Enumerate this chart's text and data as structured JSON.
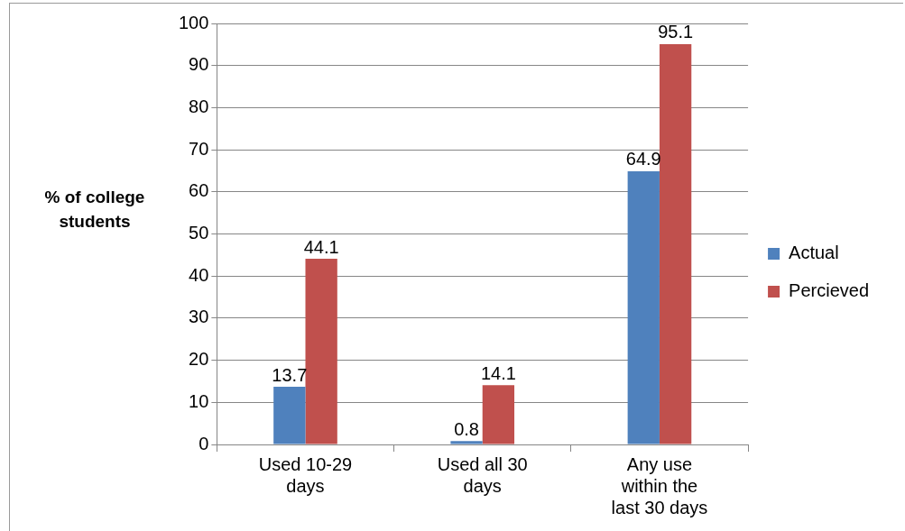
{
  "chart_data": {
    "type": "bar",
    "ylabel": "% of college students",
    "categories": [
      "Used 10-29 days",
      "Used all 30 days",
      "Any use within the last 30 days"
    ],
    "series": [
      {
        "name": "Actual",
        "color": "#4f81bd",
        "values": [
          13.7,
          0.8,
          64.9
        ]
      },
      {
        "name": "Percieved",
        "color": "#c0504d",
        "values": [
          44.1,
          14.1,
          95.1
        ]
      }
    ],
    "ylim": [
      0,
      100
    ],
    "yticks": [
      0,
      10,
      20,
      30,
      40,
      50,
      60,
      70,
      80,
      90,
      100
    ],
    "grid": "y",
    "legend": "right",
    "data_labels": true
  }
}
